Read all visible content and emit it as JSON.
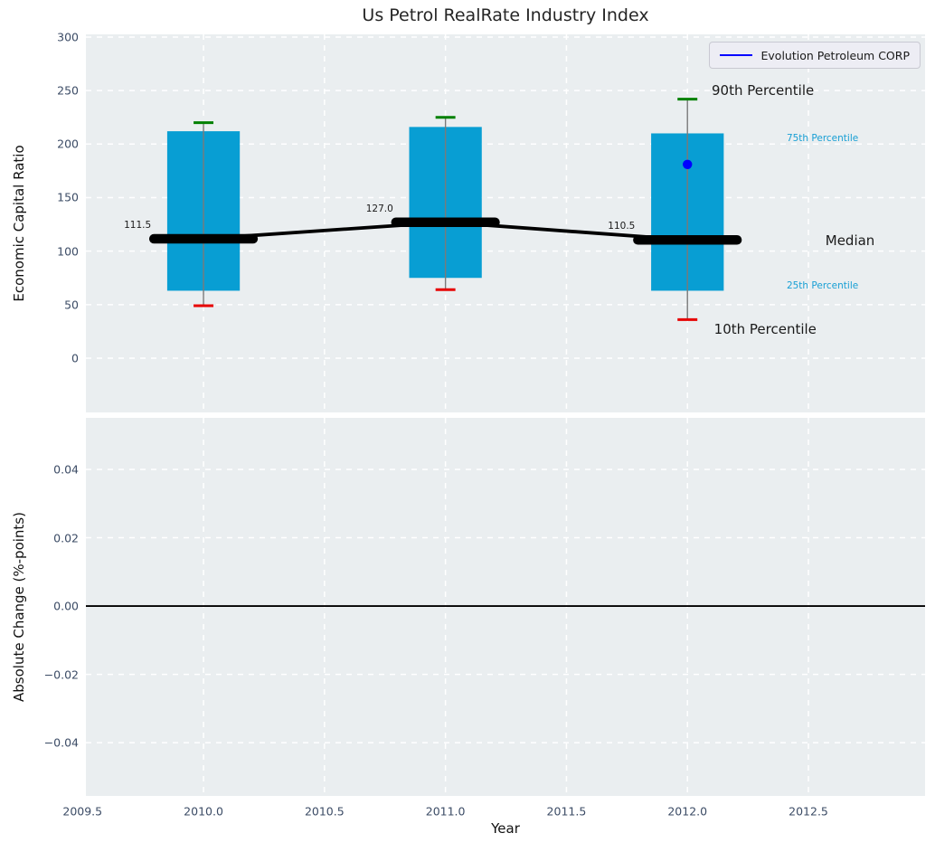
{
  "figure": {
    "colors": {
      "axes_background": "#eaeef0",
      "grid": "#ffffff",
      "tick_label": "#3c4c66",
      "bar": "#089ed3",
      "whisker": "#7a7a7a",
      "cap_90th": "#008000",
      "cap_10th": "#e60000",
      "median_line": "#000000",
      "company_marker": "#0000ff",
      "percentile_text": "#189fd4",
      "black_text": "#1a1a1a",
      "zero_line": "#000000"
    }
  },
  "chart_data": [
    {
      "type": "bar",
      "title": "Us Petrol RealRate Industry Index",
      "ylabel": "Economic Capital Ratio",
      "xlim": [
        2009.514,
        2012.982
      ],
      "ylim": [
        -50.7,
        302.5
      ],
      "grid": true,
      "yticks": {
        "values": [
          0,
          50,
          100,
          150,
          200,
          250,
          300
        ],
        "labels": [
          "0",
          "50",
          "100",
          "150",
          "200",
          "250",
          "300"
        ]
      },
      "xticks": {
        "values": [
          2009.5,
          2010.0,
          2010.5,
          2011.0,
          2011.5,
          2012.0,
          2012.5
        ],
        "labels": []
      },
      "legend": {
        "position": "upper right",
        "entries": [
          {
            "label": "Evolution Petroleum CORP",
            "color": "#0000ff"
          }
        ]
      },
      "bar_width_years": 0.3,
      "median_segment_width_years": 0.41,
      "cap_width_years": 0.082,
      "groups": [
        {
          "year": 2010,
          "p10": 49,
          "p25": 63,
          "median": 111.5,
          "p75": 212,
          "p90": 220,
          "median_label": "111.5"
        },
        {
          "year": 2011,
          "p10": 64,
          "p25": 75,
          "median": 127.0,
          "p75": 216,
          "p90": 225,
          "median_label": "127.0"
        },
        {
          "year": 2012,
          "p10": 36,
          "p25": 63,
          "median": 110.5,
          "p75": 210,
          "p90": 242,
          "median_label": "110.5"
        }
      ],
      "company_point": {
        "label": "Evolution Petroleum CORP",
        "year": 2012,
        "value": 181
      },
      "annotations": [
        {
          "text": "90th Percentile",
          "x": 2012.1,
          "y": 250.0,
          "size": 15,
          "color": "#1a1a1a"
        },
        {
          "text": "75th Percentile",
          "x": 2012.41,
          "y": 205.0,
          "size": 10.5,
          "color": "#189fd4"
        },
        {
          "text": "Median",
          "x": 2012.57,
          "y": 110.0,
          "size": 15,
          "color": "#1a1a1a"
        },
        {
          "text": "25th Percentile",
          "x": 2012.41,
          "y": 68.0,
          "size": 10.5,
          "color": "#189fd4"
        },
        {
          "text": "10th Percentile",
          "x": 2012.11,
          "y": 27.0,
          "size": 15,
          "color": "#1a1a1a"
        }
      ]
    },
    {
      "type": "line",
      "title": "",
      "xlabel": "Year",
      "ylabel": "Absolute Change (%-points)",
      "xlim": [
        2009.514,
        2012.982
      ],
      "ylim": [
        -0.0556,
        0.0551
      ],
      "grid": true,
      "series": [],
      "zero_line": 0.0,
      "yticks": {
        "values": [
          0.04,
          0.02,
          0.0,
          -0.02,
          -0.04
        ],
        "labels": [
          "0.04",
          "0.02",
          "0.00",
          "−0.02",
          "−0.04"
        ]
      },
      "xticks": {
        "values": [
          2009.5,
          2010.0,
          2010.5,
          2011.0,
          2011.5,
          2012.0,
          2012.5
        ],
        "labels": [
          "2009.5",
          "2010.0",
          "2010.5",
          "2011.0",
          "2011.5",
          "2012.0",
          "2012.5"
        ]
      }
    }
  ]
}
